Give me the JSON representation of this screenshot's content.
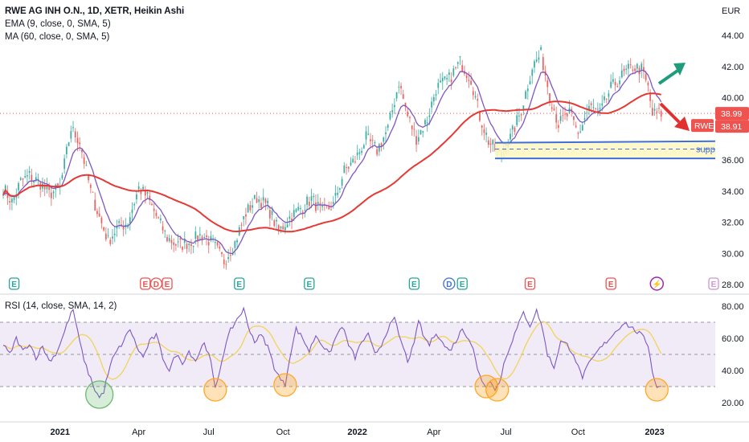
{
  "header": {
    "title": "RWE AG INH O.N., 1D, XETR, Heikin Ashi",
    "ema_label": "EMA (9, close, 0, SMA, 5)",
    "ma_label": "MA (60, close, 0, SMA, 5)",
    "rsi_label": "RSI (14, close, SMA, 14, 2)"
  },
  "price_tags": {
    "currency": "EUR",
    "last_value": "38.99",
    "ticker": "RWE",
    "ma_value": "38.91"
  },
  "drawings": {
    "support_text": "supp"
  },
  "colors": {
    "up": "#26a69a",
    "down": "#ef5350",
    "ema": "#7e57c2",
    "ma": "#e53935",
    "rsi": "#7e57c2",
    "rsi_ma": "#f2d35b",
    "support": "#3f6fd8",
    "support_fill": "#fff7c2",
    "arrow_up": "#1e9c7c",
    "arrow_down": "#e03030",
    "rsi_band": "#ede7f6"
  },
  "events": [
    {
      "label": "E",
      "t": 5,
      "kind": "earnings",
      "color": "#26a69a"
    },
    {
      "label": "E",
      "t": 65,
      "kind": "earnings",
      "color": "#ef5350"
    },
    {
      "label": "D",
      "t": 70,
      "kind": "dividend",
      "color": "#ef5350"
    },
    {
      "label": "E",
      "t": 75,
      "kind": "earnings",
      "color": "#ef5350"
    },
    {
      "label": "E",
      "t": 108,
      "kind": "earnings",
      "color": "#26a69a"
    },
    {
      "label": "E",
      "t": 140,
      "kind": "earnings",
      "color": "#26a69a"
    },
    {
      "label": "E",
      "t": 188,
      "kind": "earnings",
      "color": "#26a69a"
    },
    {
      "label": "D",
      "t": 204,
      "kind": "dividend",
      "color": "#3f6fd8"
    },
    {
      "label": "E",
      "t": 210,
      "kind": "earnings",
      "color": "#26a69a"
    },
    {
      "label": "E",
      "t": 241,
      "kind": "earnings",
      "color": "#ef5350"
    },
    {
      "label": "E",
      "t": 278,
      "kind": "earnings",
      "color": "#ef5350"
    },
    {
      "label": "⚡",
      "t": 299,
      "kind": "split",
      "color": "#9c27b0"
    },
    {
      "label": "E",
      "t": 325,
      "kind": "earnings",
      "color": "#ce93d8"
    }
  ],
  "chart_data": [
    {
      "type": "candlestick",
      "title": "RWE AG INH O.N., 1D, XETR, Heikin Ashi",
      "ylim": [
        28,
        44
      ],
      "yticks": [
        "44.00",
        "42.00",
        "40.00",
        "38.00",
        "36.00",
        "34.00",
        "32.00",
        "30.00",
        "28.00"
      ],
      "xticks": [
        "2021",
        "Apr",
        "Jul",
        "Oct",
        "2022",
        "Apr",
        "Jul",
        "Oct",
        "2023"
      ],
      "tick_positions": [
        26,
        62,
        94,
        128,
        162,
        197,
        230,
        263,
        298
      ],
      "price_anchors": [
        [
          0,
          34.2
        ],
        [
          4,
          33.3
        ],
        [
          8,
          34.6
        ],
        [
          12,
          35.0
        ],
        [
          17,
          34.5
        ],
        [
          21,
          33.8
        ],
        [
          26,
          34.2
        ],
        [
          31,
          38.0
        ],
        [
          35,
          37.2
        ],
        [
          40,
          34.0
        ],
        [
          44,
          32.3
        ],
        [
          48,
          30.8
        ],
        [
          52,
          31.6
        ],
        [
          57,
          32.0
        ],
        [
          62,
          34.2
        ],
        [
          66,
          33.6
        ],
        [
          70,
          32.4
        ],
        [
          75,
          31.0
        ],
        [
          80,
          30.5
        ],
        [
          85,
          30.7
        ],
        [
          91,
          31.2
        ],
        [
          96,
          30.6
        ],
        [
          101,
          29.5
        ],
        [
          106,
          30.7
        ],
        [
          111,
          32.6
        ],
        [
          116,
          33.6
        ],
        [
          121,
          33.0
        ],
        [
          126,
          31.4
        ],
        [
          131,
          32.3
        ],
        [
          136,
          32.9
        ],
        [
          141,
          33.5
        ],
        [
          146,
          32.6
        ],
        [
          151,
          33.1
        ],
        [
          156,
          35.3
        ],
        [
          161,
          36.0
        ],
        [
          166,
          37.4
        ],
        [
          171,
          36.6
        ],
        [
          176,
          38.0
        ],
        [
          181,
          41.0
        ],
        [
          185,
          38.8
        ],
        [
          189,
          37.4
        ],
        [
          194,
          38.6
        ],
        [
          198,
          40.6
        ],
        [
          204,
          41.2
        ],
        [
          209,
          42.3
        ],
        [
          214,
          41.2
        ],
        [
          218,
          38.8
        ],
        [
          222,
          37.2
        ],
        [
          227,
          36.3
        ],
        [
          232,
          37.4
        ],
        [
          237,
          39.2
        ],
        [
          242,
          42.0
        ],
        [
          246,
          42.8
        ],
        [
          250,
          40.2
        ],
        [
          254,
          38.3
        ],
        [
          259,
          39.0
        ],
        [
          263,
          37.6
        ],
        [
          268,
          39.4
        ],
        [
          273,
          39.0
        ],
        [
          278,
          40.6
        ],
        [
          283,
          41.4
        ],
        [
          288,
          42.0
        ],
        [
          292,
          41.8
        ],
        [
          295,
          40.6
        ],
        [
          297,
          38.9
        ],
        [
          299,
          38.99
        ]
      ],
      "series": [
        {
          "name": "EMA (9, close, 0, SMA, 5)",
          "kind": "ema",
          "period": 9
        },
        {
          "name": "MA (60, close, 0, SMA, 5)",
          "kind": "sma",
          "period": 60
        }
      ],
      "support_zone": {
        "top": 37.1,
        "mid": 36.7,
        "bottom": 36.1,
        "t_start": 225,
        "t_end": 340
      },
      "last_value": 38.99
    },
    {
      "type": "line",
      "title": "RSI (14, close, SMA, 14, 2)",
      "ylim": [
        18,
        83
      ],
      "yticks": [
        "80.00",
        "60.00",
        "40.00",
        "20.00"
      ],
      "levels": [
        70,
        50,
        30
      ],
      "rsi_anchors": [
        [
          0,
          56
        ],
        [
          3,
          50
        ],
        [
          6,
          60
        ],
        [
          9,
          52
        ],
        [
          12,
          57
        ],
        [
          15,
          48
        ],
        [
          18,
          55
        ],
        [
          21,
          46
        ],
        [
          24,
          50
        ],
        [
          27,
          60
        ],
        [
          30,
          72
        ],
        [
          32,
          78
        ],
        [
          34,
          64
        ],
        [
          36,
          52
        ],
        [
          38,
          42
        ],
        [
          40,
          35
        ],
        [
          42,
          28
        ],
        [
          44,
          23
        ],
        [
          46,
          27
        ],
        [
          48,
          38
        ],
        [
          50,
          47
        ],
        [
          52,
          52
        ],
        [
          55,
          58
        ],
        [
          58,
          66
        ],
        [
          61,
          55
        ],
        [
          64,
          48
        ],
        [
          67,
          58
        ],
        [
          70,
          62
        ],
        [
          73,
          48
        ],
        [
          76,
          40
        ],
        [
          79,
          50
        ],
        [
          82,
          45
        ],
        [
          85,
          52
        ],
        [
          88,
          46
        ],
        [
          92,
          58
        ],
        [
          95,
          45
        ],
        [
          97,
          28
        ],
        [
          99,
          40
        ],
        [
          101,
          52
        ],
        [
          104,
          65
        ],
        [
          107,
          72
        ],
        [
          110,
          78
        ],
        [
          112,
          68
        ],
        [
          115,
          58
        ],
        [
          118,
          62
        ],
        [
          121,
          55
        ],
        [
          124,
          42
        ],
        [
          127,
          34
        ],
        [
          129,
          31
        ],
        [
          131,
          48
        ],
        [
          134,
          66
        ],
        [
          137,
          60
        ],
        [
          140,
          52
        ],
        [
          143,
          62
        ],
        [
          146,
          56
        ],
        [
          149,
          50
        ],
        [
          152,
          60
        ],
        [
          155,
          68
        ],
        [
          158,
          56
        ],
        [
          161,
          48
        ],
        [
          164,
          58
        ],
        [
          167,
          62
        ],
        [
          170,
          50
        ],
        [
          173,
          56
        ],
        [
          176,
          66
        ],
        [
          179,
          72
        ],
        [
          182,
          58
        ],
        [
          185,
          46
        ],
        [
          188,
          56
        ],
        [
          190,
          72
        ],
        [
          192,
          62
        ],
        [
          195,
          56
        ],
        [
          198,
          64
        ],
        [
          201,
          57
        ],
        [
          204,
          52
        ],
        [
          207,
          58
        ],
        [
          210,
          66
        ],
        [
          213,
          60
        ],
        [
          215,
          54
        ],
        [
          217,
          40
        ],
        [
          219,
          34
        ],
        [
          221,
          30
        ],
        [
          223,
          34
        ],
        [
          225,
          29
        ],
        [
          227,
          32
        ],
        [
          229,
          44
        ],
        [
          232,
          56
        ],
        [
          235,
          66
        ],
        [
          238,
          76
        ],
        [
          241,
          68
        ],
        [
          244,
          77
        ],
        [
          246,
          70
        ],
        [
          249,
          50
        ],
        [
          252,
          42
        ],
        [
          255,
          58
        ],
        [
          258,
          56
        ],
        [
          261,
          50
        ],
        [
          263,
          42
        ],
        [
          265,
          36
        ],
        [
          268,
          44
        ],
        [
          272,
          52
        ],
        [
          276,
          58
        ],
        [
          280,
          64
        ],
        [
          284,
          70
        ],
        [
          288,
          66
        ],
        [
          292,
          62
        ],
        [
          295,
          56
        ],
        [
          297,
          40
        ],
        [
          299,
          29
        ],
        [
          301,
          31
        ]
      ],
      "series": [
        {
          "name": "RSI (14, close, SMA, 14, 2)",
          "kind": "rsi"
        },
        {
          "name": "",
          "kind": "rsi_ma",
          "period": 14
        }
      ],
      "circles": [
        {
          "t": 44,
          "v": 25,
          "color": "green"
        },
        {
          "t": 97,
          "v": 28,
          "color": "orange"
        },
        {
          "t": 129,
          "v": 31,
          "color": "orange"
        },
        {
          "t": 221,
          "v": 30,
          "color": "orange"
        },
        {
          "t": 226,
          "v": 28,
          "color": "orange"
        },
        {
          "t": 299,
          "v": 28,
          "color": "orange"
        }
      ]
    }
  ]
}
